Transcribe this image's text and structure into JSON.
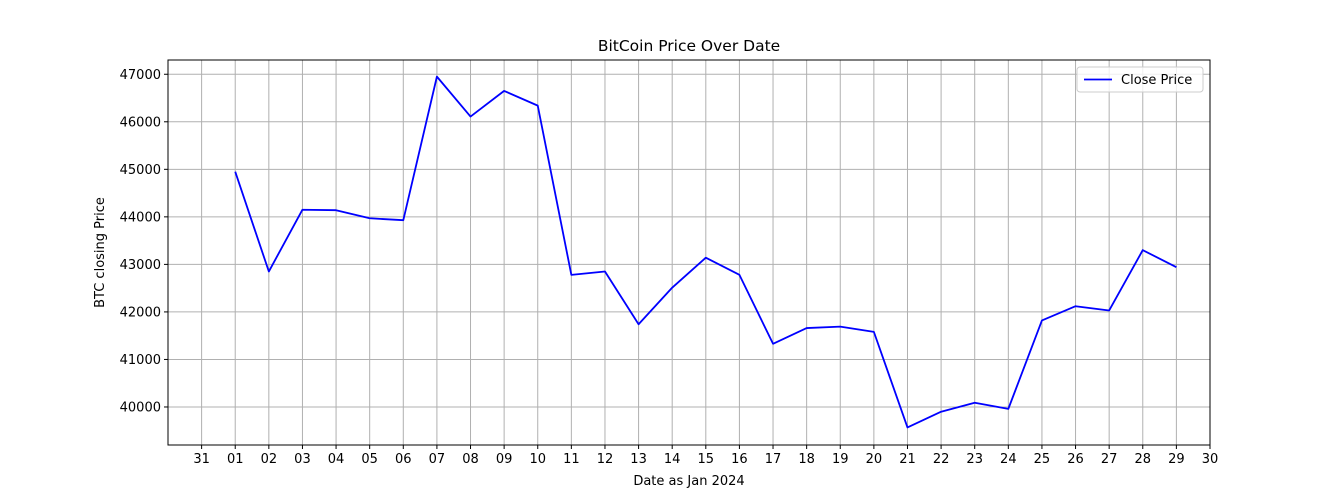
{
  "chart_data": {
    "type": "line",
    "title": "BitCoin Price Over Date",
    "xlabel": "Date as Jan 2024",
    "ylabel": "BTC closing Price",
    "x_tick_labels": [
      "31",
      "01",
      "02",
      "03",
      "04",
      "05",
      "06",
      "07",
      "08",
      "09",
      "10",
      "11",
      "12",
      "13",
      "14",
      "15",
      "16",
      "17",
      "18",
      "19",
      "20",
      "21",
      "22",
      "23",
      "24",
      "25",
      "26",
      "27",
      "28",
      "29",
      "30"
    ],
    "xlim": [
      "2023-12-30",
      "2024-01-30"
    ],
    "x_tick_dates": [
      "2023-12-31",
      "2024-01-01",
      "2024-01-02",
      "2024-01-03",
      "2024-01-04",
      "2024-01-05",
      "2024-01-06",
      "2024-01-07",
      "2024-01-08",
      "2024-01-09",
      "2024-01-10",
      "2024-01-11",
      "2024-01-12",
      "2024-01-13",
      "2024-01-14",
      "2024-01-15",
      "2024-01-16",
      "2024-01-17",
      "2024-01-18",
      "2024-01-19",
      "2024-01-20",
      "2024-01-21",
      "2024-01-22",
      "2024-01-23",
      "2024-01-24",
      "2024-01-25",
      "2024-01-26",
      "2024-01-27",
      "2024-01-28",
      "2024-01-29",
      "2024-01-30"
    ],
    "y_ticks": [
      40000,
      41000,
      42000,
      43000,
      44000,
      45000,
      46000,
      47000
    ],
    "ylim": [
      39200,
      47300
    ],
    "grid": true,
    "legend_position": "top-right",
    "series": [
      {
        "name": "Close Price",
        "color": "#0000ff",
        "x": [
          "2024-01-01",
          "2024-01-02",
          "2024-01-03",
          "2024-01-04",
          "2024-01-05",
          "2024-01-06",
          "2024-01-07",
          "2024-01-08",
          "2024-01-09",
          "2024-01-10",
          "2024-01-11",
          "2024-01-12",
          "2024-01-13",
          "2024-01-14",
          "2024-01-15",
          "2024-01-16",
          "2024-01-17",
          "2024-01-18",
          "2024-01-19",
          "2024-01-20",
          "2024-01-21",
          "2024-01-22",
          "2024-01-23",
          "2024-01-24",
          "2024-01-25",
          "2024-01-26",
          "2024-01-27",
          "2024-01-28",
          "2024-01-29"
        ],
        "values": [
          44950,
          42850,
          44150,
          44140,
          43970,
          43930,
          46950,
          46110,
          46650,
          46340,
          42780,
          42850,
          41740,
          42510,
          43140,
          42780,
          41330,
          41660,
          41690,
          41580,
          39570,
          39900,
          40090,
          39960,
          41820,
          42120,
          42030,
          43300,
          42940
        ]
      }
    ]
  }
}
